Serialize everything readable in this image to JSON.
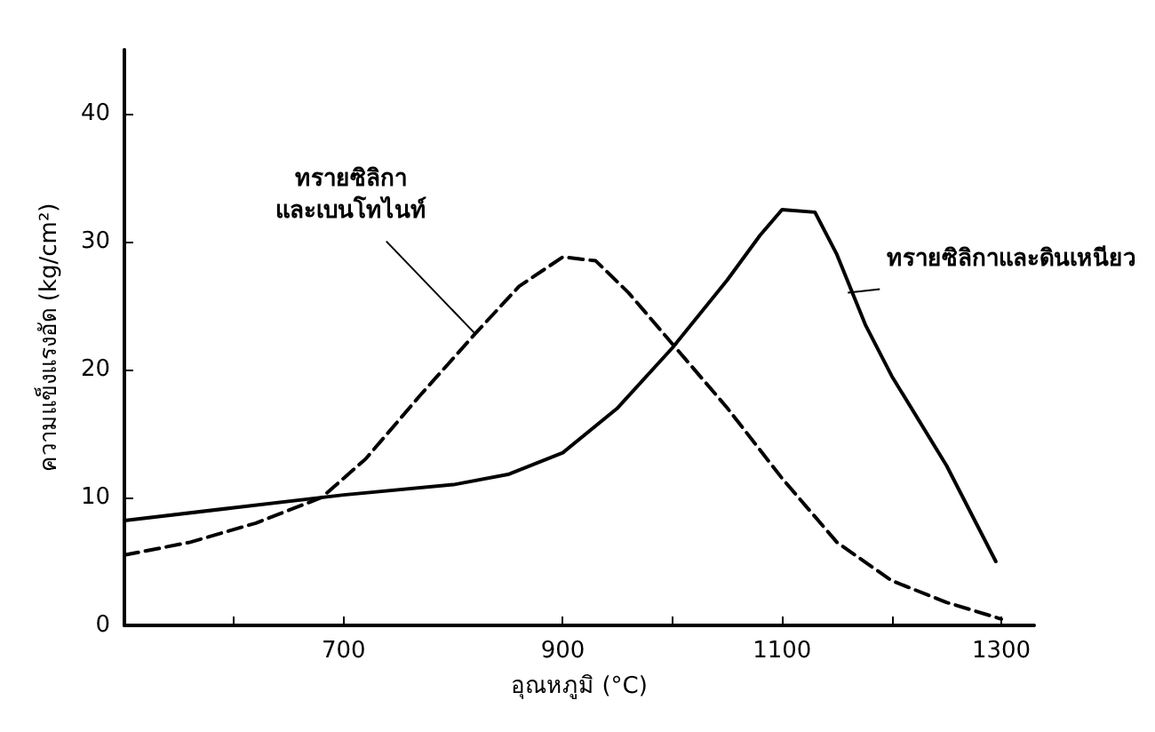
{
  "chart_data": {
    "type": "line",
    "xlabel": "อุณหภูมิ (°C)",
    "ylabel": "ความแข็งแรงอัด (kg/cm²)",
    "xlim": [
      500,
      1330
    ],
    "xticks": [
      {
        "value": 600,
        "label": null
      },
      700,
      900,
      {
        "value": 1000,
        "label": null
      },
      1100,
      {
        "value": 1200,
        "label": null
      },
      1300
    ],
    "ylim": [
      0,
      45
    ],
    "yticks": [
      0,
      10,
      20,
      30,
      40
    ],
    "grid": false,
    "marker": "none",
    "series": [
      {
        "color": "#000000",
        "line_style": "solid",
        "x": [
          500,
          600,
          700,
          800,
          850,
          900,
          950,
          1000,
          1050,
          1080,
          1100,
          1130,
          1150,
          1176,
          1200,
          1250,
          1295
        ],
        "values": [
          8.2,
          9.2,
          10.2,
          11,
          11.8,
          13.5,
          17,
          21.7,
          27,
          30.5,
          32.5,
          32.3,
          29,
          23.5,
          19.5,
          12.5,
          5
        ]
      },
      {
        "color": "#000000",
        "line_style": "dashed",
        "x": [
          500,
          560,
          620,
          680,
          720,
          770,
          820,
          860,
          900,
          930,
          960,
          1000,
          1050,
          1100,
          1150,
          1200,
          1250,
          1300
        ],
        "values": [
          5.5,
          6.5,
          8,
          10,
          13,
          18,
          22.8,
          26.5,
          28.8,
          28.5,
          26,
          22,
          17,
          11.5,
          6.5,
          3.5,
          1.8,
          0.5
        ]
      }
    ],
    "annotations": [
      {
        "text": "ทรายซิลิกา\nและเบนโทไนท์",
        "x": 820,
        "y": 22.8
      },
      {
        "text": "ทรายซิลิกาและดินเหนียว",
        "x": 1160,
        "y": 26
      }
    ]
  }
}
